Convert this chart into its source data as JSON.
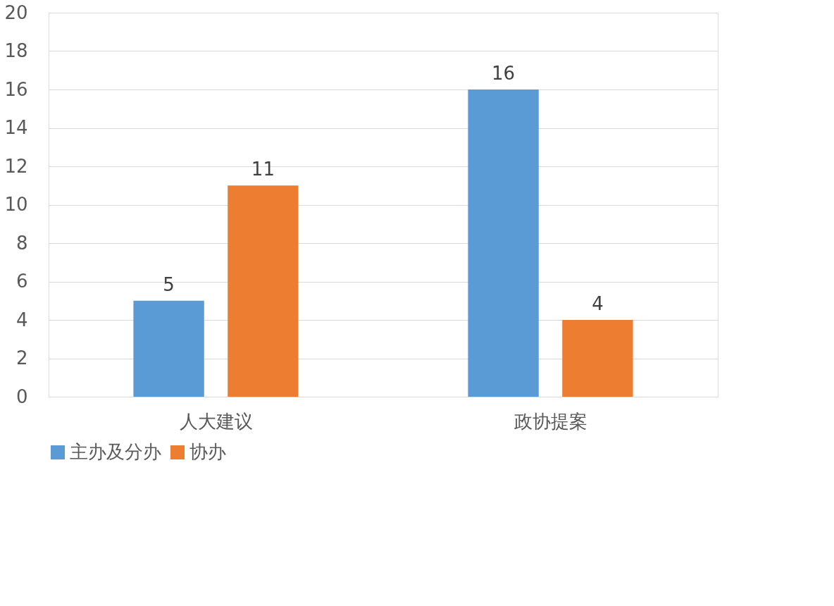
{
  "chart_data": {
    "type": "bar",
    "categories": [
      "人大建议",
      "政协提案"
    ],
    "series": [
      {
        "name": "主办及分办",
        "color": "#5b9bd5",
        "values": [
          5,
          16
        ]
      },
      {
        "name": "协办",
        "color": "#ed7d31",
        "values": [
          11,
          4
        ]
      }
    ],
    "ylim": [
      0,
      20
    ],
    "yticks": [
      0,
      2,
      4,
      6,
      8,
      10,
      12,
      14,
      16,
      18,
      20
    ],
    "grid": "y",
    "legend": "bottom",
    "data_labels": true
  }
}
